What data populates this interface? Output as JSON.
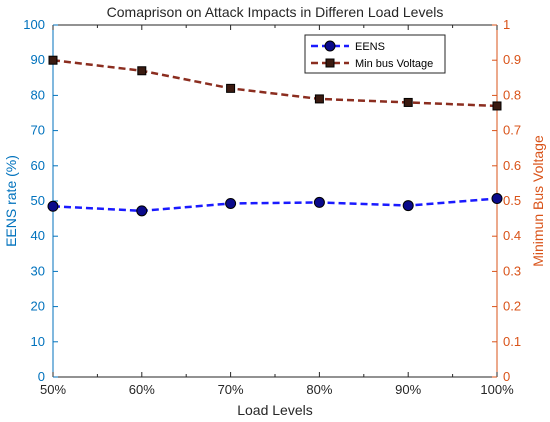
{
  "chart_data": {
    "type": "line",
    "title": "Comaprison on Attack Impacts in Differen Load Levels",
    "xlabel": "Load Levels",
    "ylabel_left": "EENS rate (%)",
    "ylabel_right": "Minimun Bus Voltage",
    "categories": [
      "50%",
      "60%",
      "70%",
      "80%",
      "90%",
      "100%"
    ],
    "ylim_left": [
      0,
      100
    ],
    "ylim_right": [
      0,
      1
    ],
    "yticks_left": [
      "0",
      "10",
      "20",
      "30",
      "40",
      "50",
      "60",
      "70",
      "80",
      "90",
      "100"
    ],
    "yticks_right": [
      "0",
      "0.1",
      "0.2",
      "0.3",
      "0.4",
      "0.5",
      "0.6",
      "0.7",
      "0.8",
      "0.9",
      "1"
    ],
    "legend_position": "top-right",
    "grid": false,
    "series": [
      {
        "name": "EENS",
        "axis": "left",
        "values": [
          48.5,
          47.2,
          49.3,
          49.6,
          48.7,
          50.7
        ],
        "color": "#1a1aff",
        "marker_face": "#0a0a8a",
        "line_style": "dashed"
      },
      {
        "name": "Min bus Voltage",
        "axis": "right",
        "values": [
          0.9,
          0.87,
          0.82,
          0.79,
          0.78,
          0.77
        ],
        "color": "#8b2d1f",
        "marker_face": "#3a1a10",
        "line_style": "dashed"
      }
    ],
    "colors": {
      "left_axis": "#0072bd",
      "right_axis": "#d95319"
    }
  }
}
